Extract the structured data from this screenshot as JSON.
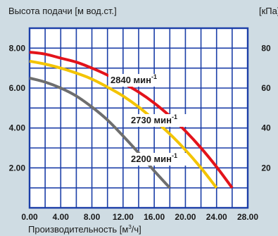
{
  "chart_data": {
    "type": "line",
    "ylabel": "Высота подачи [м вод.ст.]",
    "ylabel_right": "[кПа]",
    "xlabel": "Производительность [м³/ч]",
    "xlim": [
      0,
      28
    ],
    "ylim": [
      0,
      9
    ],
    "ylim_right": [
      0,
      90
    ],
    "grid": true,
    "x_ticks": [
      "0.00",
      "4.00",
      "8.00",
      "12.00",
      "16.00",
      "20.00",
      "24.00",
      "28.00"
    ],
    "y_ticks": [
      "8.00",
      "6.00",
      "4.00",
      "2.00"
    ],
    "y_ticks_right": [
      "80",
      "60",
      "40",
      "20"
    ],
    "series": [
      {
        "name": "2840 мин-1",
        "label_text": "2840 мин",
        "label_sup": "-1",
        "color": "#e3131b",
        "x": [
          0,
          2,
          4,
          6,
          8,
          10,
          12,
          14,
          16,
          18,
          20,
          22,
          24,
          26
        ],
        "y": [
          7.8,
          7.7,
          7.5,
          7.3,
          7.0,
          6.65,
          6.25,
          5.8,
          5.25,
          4.6,
          3.85,
          3.0,
          2.05,
          1.0
        ]
      },
      {
        "name": "2730 мин-1",
        "label_text": "2730 мин",
        "label_sup": "-1",
        "color": "#f3c400",
        "x": [
          0,
          2,
          4,
          6,
          8,
          10,
          12,
          14,
          16,
          18,
          20,
          22,
          24
        ],
        "y": [
          7.35,
          7.2,
          7.0,
          6.75,
          6.45,
          6.05,
          5.6,
          5.05,
          4.4,
          3.7,
          2.9,
          2.0,
          1.0
        ]
      },
      {
        "name": "2200 мин-1",
        "label_text": "2200 мин",
        "label_sup": "-1",
        "color": "#6e6e6e",
        "x": [
          0,
          2,
          4,
          6,
          8,
          10,
          12,
          14,
          16,
          18
        ],
        "y": [
          6.5,
          6.3,
          6.0,
          5.6,
          5.05,
          4.4,
          3.6,
          2.75,
          1.85,
          1.0
        ]
      }
    ]
  }
}
